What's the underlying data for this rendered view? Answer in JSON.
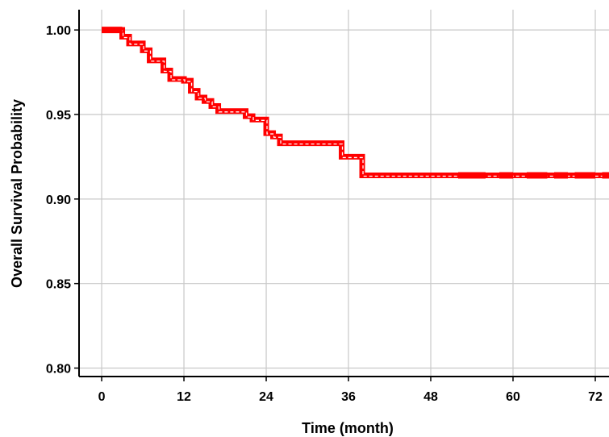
{
  "chart_data": {
    "type": "line",
    "title": "",
    "xlabel": "Time (month)",
    "ylabel": "Overall Survival Probability",
    "xlim": [
      -3.3,
      74
    ],
    "ylim": [
      0.795,
      1.012
    ],
    "x_ticks": [
      0,
      12,
      24,
      36,
      48,
      60,
      72
    ],
    "x_tick_labels": [
      "0",
      "12",
      "24",
      "36",
      "48",
      "60",
      "72"
    ],
    "y_ticks": [
      0.8,
      0.85,
      0.9,
      0.95,
      1.0
    ],
    "y_tick_labels": [
      "0.80",
      "0.85",
      "0.90",
      "0.95",
      "1.00"
    ],
    "grid": true,
    "legend": "none",
    "colors": {
      "curve": "#ff0000",
      "grid": "#c8c8c8",
      "axis": "#000000"
    },
    "series": [
      {
        "step": "post",
        "x": [
          0,
          3,
          4,
          6,
          7,
          9,
          10,
          12,
          13,
          14,
          15,
          16,
          17,
          21,
          22,
          24,
          25,
          26,
          35,
          38,
          74
        ],
        "y": [
          1.0,
          0.996,
          0.992,
          0.988,
          0.982,
          0.976,
          0.971,
          0.97,
          0.964,
          0.96,
          0.958,
          0.955,
          0.952,
          0.949,
          0.947,
          0.939,
          0.937,
          0.933,
          0.925,
          0.914,
          0.914
        ]
      }
    ],
    "censor_marks": [
      {
        "x_from": 0,
        "x_to": 3,
        "y": 1.0
      },
      {
        "x_from": 52,
        "x_to": 56,
        "y": 0.914
      },
      {
        "x_from": 58,
        "x_to": 60,
        "y": 0.914
      },
      {
        "x_from": 62,
        "x_to": 65,
        "y": 0.914
      },
      {
        "x_from": 66,
        "x_to": 68,
        "y": 0.914
      },
      {
        "x_from": 69,
        "x_to": 72,
        "y": 0.914
      },
      {
        "x_from": 73,
        "x_to": 74,
        "y": 0.914
      }
    ]
  }
}
